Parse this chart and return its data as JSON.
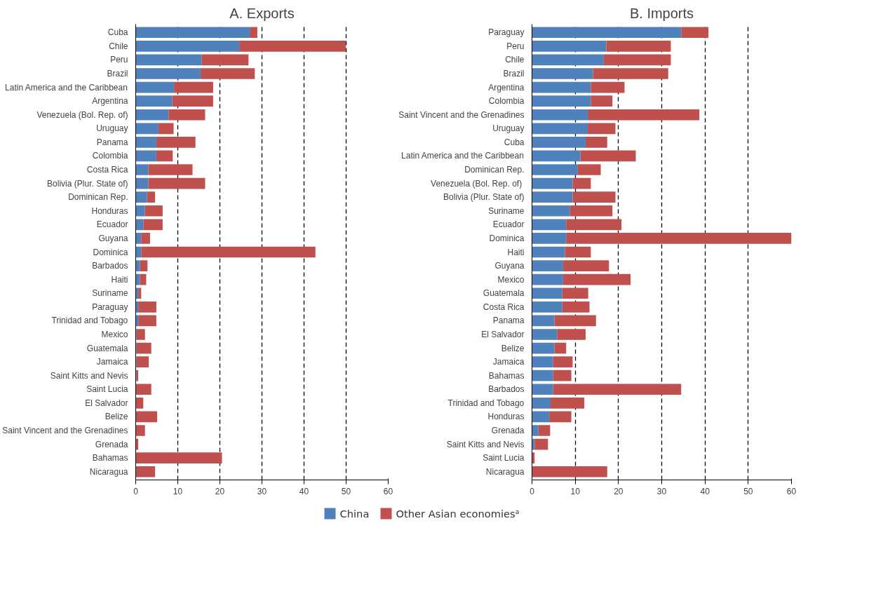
{
  "chart_data": [
    {
      "type": "bar",
      "orientation": "horizontal",
      "stacked": true,
      "title": "A. Exports",
      "grid": "x",
      "legend": "bottom",
      "line_style": "dashed",
      "categories": [
        "Cuba",
        "Chile",
        "Peru",
        "Brazil",
        "Latin America and the Caribbean",
        "Argentina",
        "Venezuela (Bol. Rep. of)",
        "Uruguay",
        "Panama",
        "Colombia",
        "Costa Rica",
        "Bolivia (Plur. State of)",
        "Dominican Rep.",
        "Honduras",
        "Ecuador",
        "Guyana",
        "Dominica",
        "Barbados",
        "Haiti",
        "Suriname",
        "Paraguay",
        "Trinidad and Tobago",
        "Mexico",
        "Guatemala",
        "Jamaica",
        "Saint Kitts and Nevis",
        "Saint Lucia",
        "El Salvador",
        "Belize",
        "Saint Vincent and the Grenadines",
        "Grenada",
        "Bahamas",
        "Nicaragua"
      ],
      "xlim": [
        0,
        60
      ],
      "xticks": [
        0,
        10,
        20,
        30,
        40,
        50,
        60
      ],
      "series": [
        {
          "name": "China",
          "color": "#4f81bd",
          "values": [
            27.1,
            24.6,
            15.7,
            15.4,
            9.1,
            8.7,
            7.8,
            5.4,
            4.9,
            4.9,
            3.0,
            3.0,
            2.7,
            2.2,
            1.8,
            1.3,
            1.3,
            1.0,
            1.0,
            0.6,
            0.6,
            0.6,
            0.2,
            0.2,
            0.2,
            0.2,
            0,
            0,
            0,
            0,
            0,
            0,
            0
          ]
        },
        {
          "name": "Other Asian economiesᵃ",
          "color": "#c0504d",
          "values": [
            1.8,
            25.3,
            11.1,
            12.9,
            9.3,
            9.7,
            8.7,
            3.6,
            9.3,
            3.9,
            10.5,
            13.5,
            1.9,
            4.2,
            4.6,
            2.1,
            41.4,
            1.8,
            1.5,
            0.7,
            4.3,
            4.3,
            2.0,
            3.5,
            2.9,
            0.4,
            3.7,
            1.8,
            5.1,
            2.2,
            0.6,
            20.5,
            4.6
          ]
        }
      ]
    },
    {
      "type": "bar",
      "orientation": "horizontal",
      "stacked": true,
      "title": "B. Imports",
      "grid": "x",
      "line_style": "dashed",
      "categories": [
        "Paraguay",
        "Peru",
        "Chile",
        "Brazil",
        "Argentina",
        "Colombia",
        "Saint Vincent and the Grenadines",
        "Uruguay",
        "Cuba",
        "Latin America and the Caribbean",
        "Dominican Rep.",
        "Venezuela  (Bol. Rep. of)",
        "Bolivia (Plur. State of)",
        "Suriname",
        "Ecuador",
        "Dominica",
        "Haiti",
        "Guyana",
        "Mexico",
        "Guatemala",
        "Costa Rica",
        "Panama",
        "El Salvador",
        "Belize",
        "Jamaica",
        "Bahamas",
        "Barbados",
        "Trinidad and Tobago",
        "Honduras",
        "Grenada",
        "Saint Kitts and Nevis",
        "Saint Lucia",
        "Nicaragua"
      ],
      "xlim": [
        0,
        60
      ],
      "xticks": [
        0,
        10,
        20,
        30,
        40,
        50,
        60
      ],
      "series": [
        {
          "color": "#4f81bd",
          "values": [
            34.5,
            17.2,
            16.6,
            14.1,
            13.6,
            13.6,
            12.9,
            12.9,
            12.4,
            11.2,
            10.6,
            9.4,
            9.4,
            8.8,
            7.9,
            7.9,
            7.6,
            7.2,
            7.2,
            7.0,
            7.0,
            5.2,
            5.8,
            5.2,
            4.9,
            4.9,
            4.9,
            4.3,
            4.0,
            1.5,
            0.6,
            0,
            0
          ]
        },
        {
          "color": "#c0504d",
          "values": [
            6.3,
            14.9,
            15.5,
            17.4,
            7.8,
            5.0,
            25.8,
            6.4,
            5.0,
            12.8,
            5.3,
            4.2,
            9.9,
            9.8,
            12.8,
            52.1,
            6.0,
            10.6,
            15.6,
            6.0,
            6.3,
            9.6,
            6.6,
            2.7,
            4.5,
            4.2,
            29.6,
            7.8,
            5.1,
            2.7,
            3.1,
            0.6,
            17.4
          ]
        }
      ]
    }
  ]
}
